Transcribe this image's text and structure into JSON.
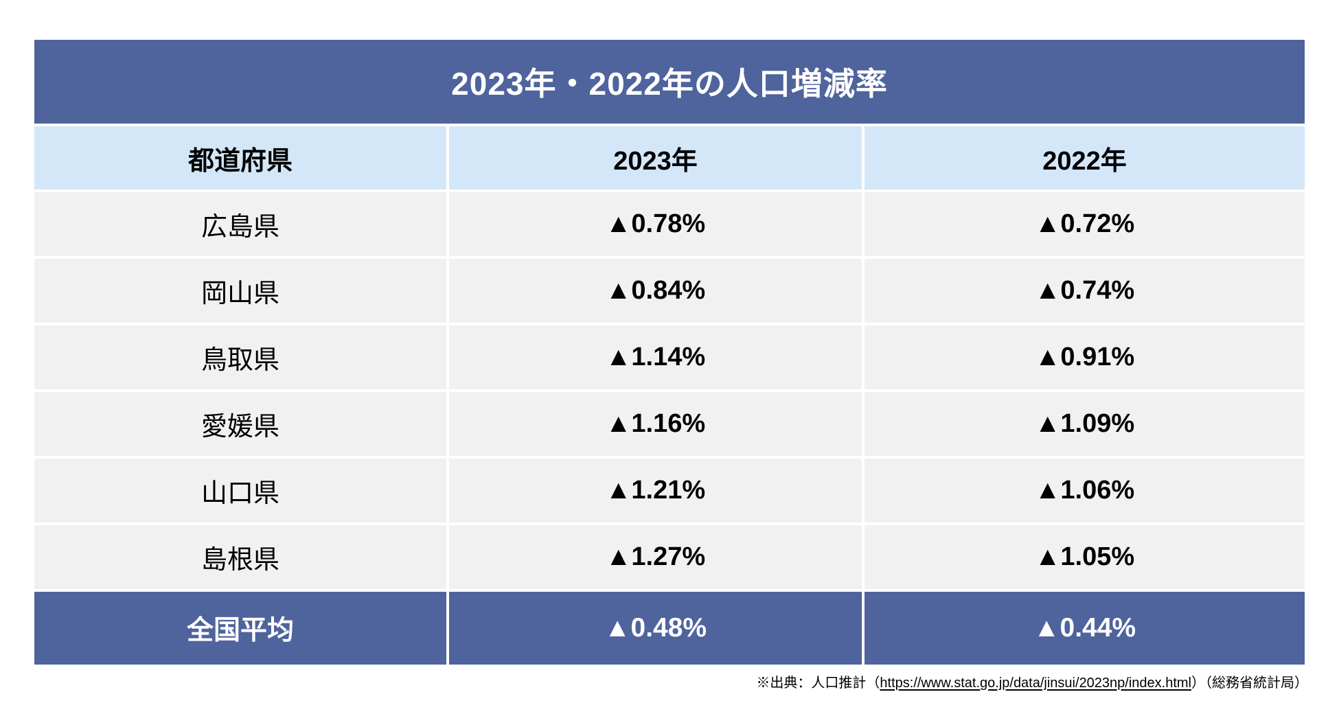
{
  "table": {
    "title": "2023年・2022年の人口増減率",
    "columns": {
      "prefecture": "都道府県",
      "y2023": "2023年",
      "y2022": "2022年"
    },
    "rows": [
      {
        "prefecture": "広島県",
        "y2023": "▲0.78%",
        "y2022": "▲0.72%"
      },
      {
        "prefecture": "岡山県",
        "y2023": "▲0.84%",
        "y2022": "▲0.74%"
      },
      {
        "prefecture": "鳥取県",
        "y2023": "▲1.14%",
        "y2022": "▲0.91%"
      },
      {
        "prefecture": "愛媛県",
        "y2023": "▲1.16%",
        "y2022": "▲1.09%"
      },
      {
        "prefecture": "山口県",
        "y2023": "▲1.21%",
        "y2022": "▲1.06%"
      },
      {
        "prefecture": "島根県",
        "y2023": "▲1.27%",
        "y2022": "▲1.05%"
      }
    ],
    "total": {
      "label": "全国平均",
      "y2023": "▲0.48%",
      "y2022": "▲0.44%"
    }
  },
  "source": {
    "prefix": "※出典：人口推計（",
    "url": "https://www.stat.go.jp/data/jinsui/2023np/index.html",
    "suffix": "）（総務省統計局）"
  },
  "colors": {
    "accent_blue": "#4F639D",
    "header_light_blue": "#D3E7F9",
    "row_gray": "#F1F1F1",
    "title_text": "#FFFFFF",
    "body_text": "#000000"
  },
  "chart_data": {
    "type": "table",
    "title": "2023年・2022年の人口増減率",
    "columns": [
      "都道府県",
      "2023年",
      "2022年"
    ],
    "unit": "%",
    "negative_marker": "▲",
    "rows": [
      {
        "category": "広島県",
        "values": [
          -0.78,
          -0.72
        ]
      },
      {
        "category": "岡山県",
        "values": [
          -0.84,
          -0.74
        ]
      },
      {
        "category": "鳥取県",
        "values": [
          -1.14,
          -0.91
        ]
      },
      {
        "category": "愛媛県",
        "values": [
          -1.16,
          -1.09
        ]
      },
      {
        "category": "山口県",
        "values": [
          -1.21,
          -1.06
        ]
      },
      {
        "category": "島根県",
        "values": [
          -1.27,
          -1.05
        ]
      }
    ],
    "total_row": {
      "category": "全国平均",
      "values": [
        -0.48,
        -0.44
      ]
    }
  }
}
